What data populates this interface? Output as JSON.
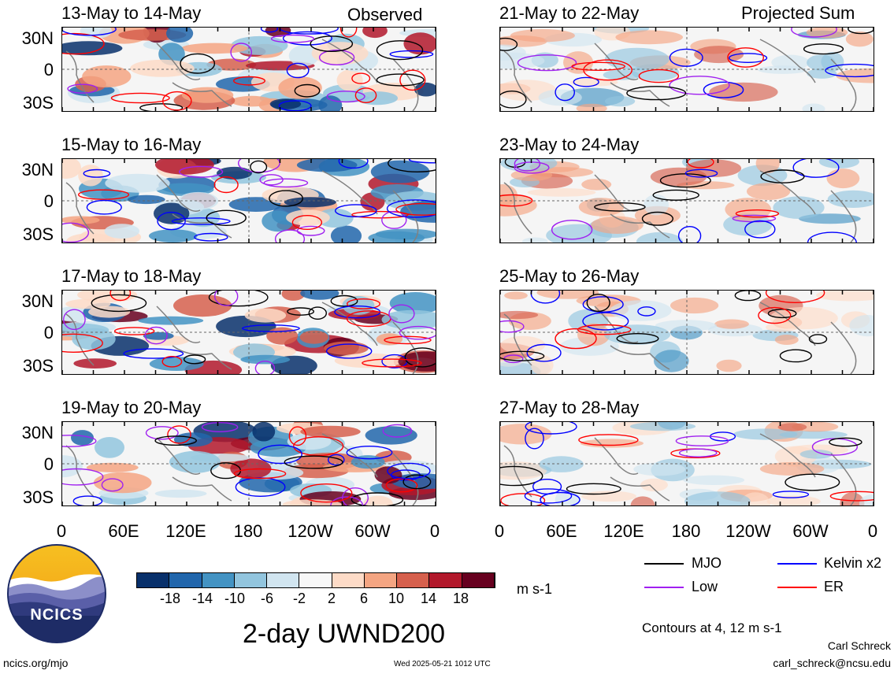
{
  "left_header": "Observed",
  "right_header": "Projected Sum",
  "panels_left": [
    {
      "title": "13-May to 14-May"
    },
    {
      "title": "15-May to 16-May"
    },
    {
      "title": "17-May to 18-May"
    },
    {
      "title": "19-May to 20-May"
    }
  ],
  "panels_right": [
    {
      "title": "21-May to 22-May"
    },
    {
      "title": "23-May to 24-May"
    },
    {
      "title": "25-May to 26-May"
    },
    {
      "title": "27-May to 28-May"
    }
  ],
  "lat_ticks": [
    "30N",
    "0",
    "30S"
  ],
  "lon_ticks": [
    "0",
    "60E",
    "120E",
    "180",
    "120W",
    "60W",
    "0"
  ],
  "colorbar": {
    "ticks": [
      "-18",
      "-14",
      "-10",
      "-6",
      "-2",
      "2",
      "6",
      "10",
      "14",
      "18"
    ],
    "colors": [
      "#08306b",
      "#2166ac",
      "#4393c3",
      "#92c5de",
      "#d1e5f0",
      "#f7f7f7",
      "#fddbc7",
      "#f4a582",
      "#d6604d",
      "#b2182b",
      "#67001f"
    ],
    "unit": "m s-1"
  },
  "legend": {
    "items": [
      {
        "label": "MJO",
        "color": "#000000"
      },
      {
        "label": "Kelvin x2",
        "color": "#0000ff"
      },
      {
        "label": "Low",
        "color": "#a020f0"
      },
      {
        "label": "ER",
        "color": "#ff0000"
      }
    ],
    "contours_note": "Contours at 4, 12 m s-1"
  },
  "logo_text": "NCICS",
  "main_title": "2-day UWND200",
  "footer": {
    "url": "ncics.org/mjo",
    "timestamp": "Wed 2025-05-21 1012 UTC",
    "author": "Carl Schreck",
    "email": "carl_schreck@ncsu.edu"
  }
}
